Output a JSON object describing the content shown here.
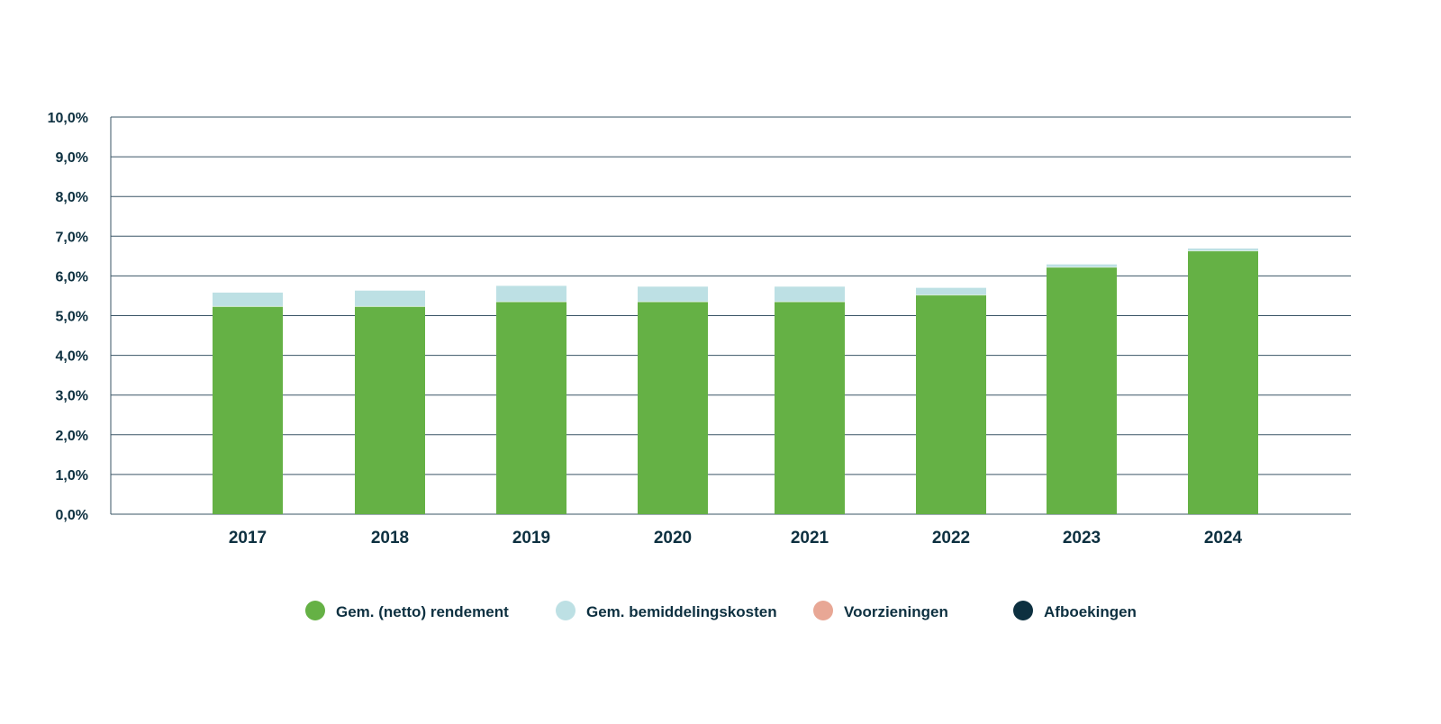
{
  "chart_data": {
    "type": "bar",
    "stacked": true,
    "categories": [
      "2017",
      "2018",
      "2019",
      "2020",
      "2021",
      "2022",
      "2023",
      "2024"
    ],
    "series": [
      {
        "name": "Gem. (netto) rendement",
        "color": "#65b145",
        "values": [
          5.23,
          5.23,
          5.35,
          5.35,
          5.35,
          5.52,
          6.22,
          6.63
        ]
      },
      {
        "name": "Gem. bemiddelingskosten",
        "color": "#bde0e4",
        "values": [
          0.35,
          0.4,
          0.4,
          0.38,
          0.38,
          0.18,
          0.07,
          0.06
        ]
      },
      {
        "name": "Voorzieningen",
        "color": "#e8a795",
        "values": [
          0,
          0,
          0,
          0,
          0,
          0,
          0,
          0
        ]
      },
      {
        "name": "Afboekingen",
        "color": "#0d3040",
        "values": [
          0,
          0,
          0,
          0,
          0,
          0,
          0,
          0
        ]
      }
    ],
    "y_ticks": [
      "0,0%",
      "1,0%",
      "2,0%",
      "3,0%",
      "4,0%",
      "5,0%",
      "6,0%",
      "7,0%",
      "8,0%",
      "9,0%",
      "10,0%"
    ],
    "ylim": [
      0,
      10
    ],
    "grid": true,
    "legend_position": "bottom",
    "title": "",
    "xlabel": "",
    "ylabel": ""
  }
}
